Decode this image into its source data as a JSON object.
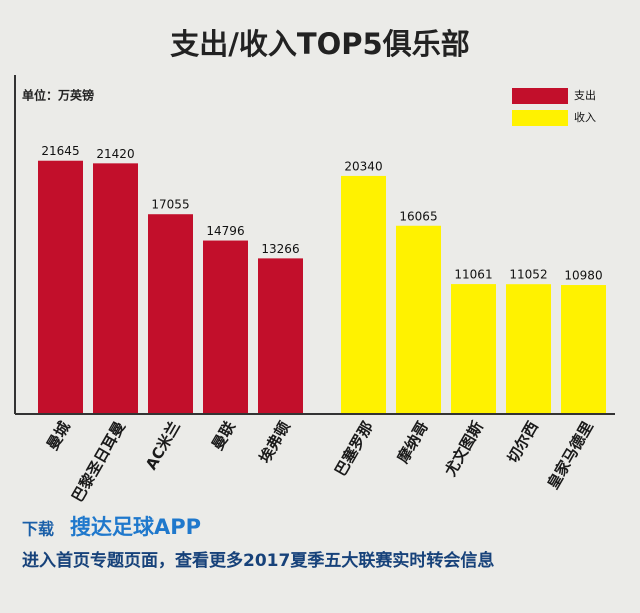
{
  "chart_data": {
    "type": "bar",
    "title": "支出/收入TOP5俱乐部",
    "unit_label": "单位：万英镑",
    "categories": [
      "曼城",
      "巴黎圣日耳曼",
      "AC米兰",
      "曼联",
      "埃弗顿",
      "巴塞罗那",
      "摩纳哥",
      "尤文图斯",
      "切尔西",
      "皇家马德里"
    ],
    "series": [
      {
        "name": "支出",
        "color": "#c20f2b",
        "values": [
          21645,
          21420,
          17055,
          14796,
          13266,
          null,
          null,
          null,
          null,
          null
        ]
      },
      {
        "name": "收入",
        "color": "#fff200",
        "values": [
          null,
          null,
          null,
          null,
          null,
          20340,
          16065,
          11061,
          11052,
          10980
        ]
      }
    ],
    "ylim": [
      0,
      29000
    ],
    "legend": "top-right",
    "footer": {
      "download": "下载",
      "app": "搜达足球APP",
      "note": "进入首页专题页面，查看更多2017夏季五大联赛实时转会信息"
    }
  }
}
